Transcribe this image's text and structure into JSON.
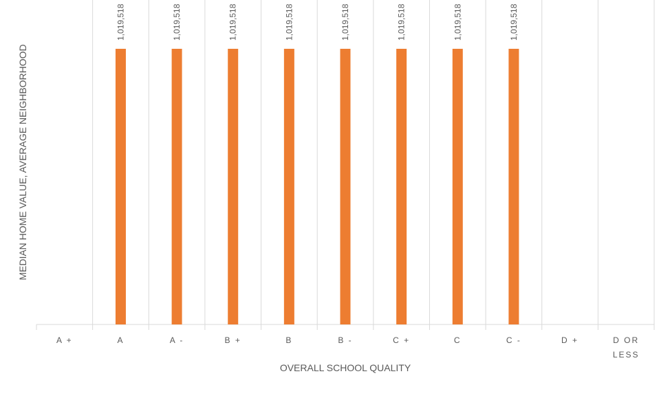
{
  "chart_data": {
    "type": "bar",
    "categories": [
      "A +",
      "A",
      "A -",
      "B +",
      "B",
      "B -",
      "C +",
      "C",
      "C -",
      "D +",
      "D OR LESS"
    ],
    "values": [
      null,
      1019518,
      1019518,
      1019518,
      1019518,
      1019518,
      1019518,
      1019518,
      1019518,
      null,
      null
    ],
    "data_labels": [
      "",
      "1,019,518",
      "1,019,518",
      "1,019,518",
      "1,019,518",
      "1,019,518",
      "1,019,518",
      "1,019,518",
      "1,019,518",
      "",
      ""
    ],
    "xlabel": "OVERALL SCHOOL QUALITY",
    "ylabel": "MEDIAN HOME VALUE, AVERAGE NEIGHBORHOOD",
    "ylim": [
      0,
      1200000
    ],
    "grid": "vertical category separators",
    "bar_color": "#ED7D31",
    "grid_color": "#D9D9D9",
    "text_color": "#595959"
  }
}
